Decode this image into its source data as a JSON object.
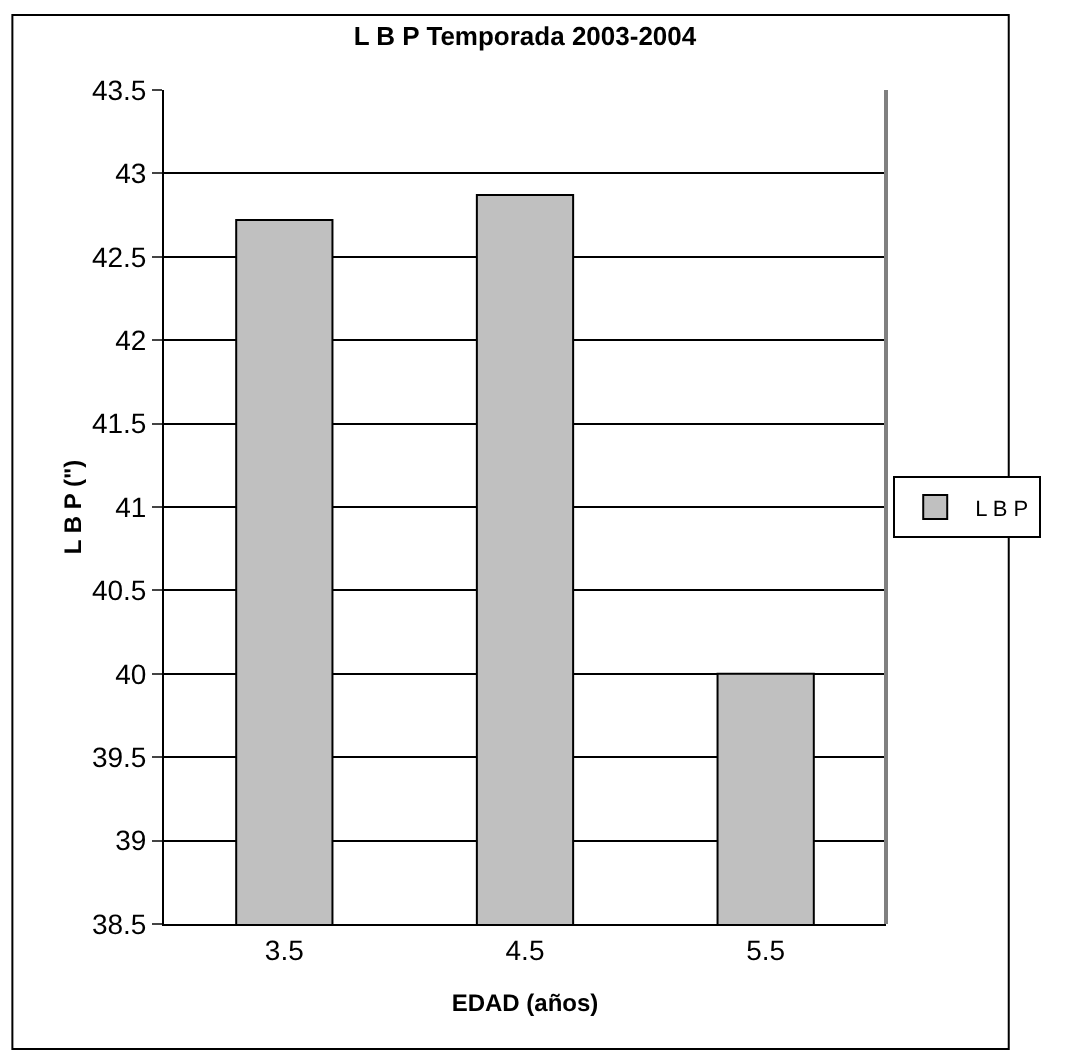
{
  "chart_data": {
    "type": "bar",
    "title": "L B P Temporada 2003-2004",
    "xlabel": "EDAD (años)",
    "ylabel": "L B P (\")",
    "categories": [
      "3.5",
      "4.5",
      "5.5"
    ],
    "series": [
      {
        "name": "L B P",
        "color": "#c0c0c0",
        "values": [
          42.72,
          42.87,
          40.0
        ]
      }
    ],
    "ylim": [
      38.5,
      43.5
    ],
    "yticks": [
      38.5,
      39,
      39.5,
      40,
      40.5,
      41,
      41.5,
      42,
      42.5,
      43,
      43.5
    ],
    "grid": "y",
    "legend": "right"
  }
}
